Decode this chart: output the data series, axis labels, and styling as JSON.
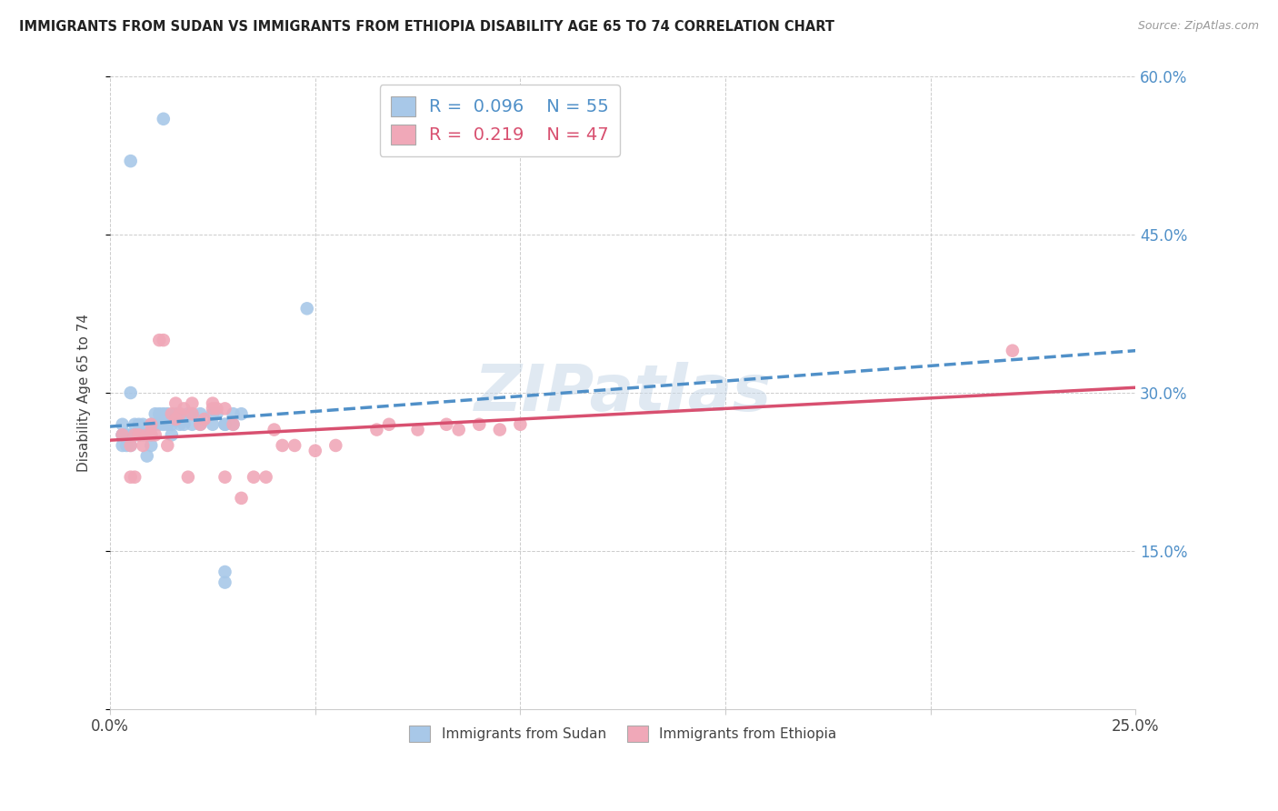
{
  "title": "IMMIGRANTS FROM SUDAN VS IMMIGRANTS FROM ETHIOPIA DISABILITY AGE 65 TO 74 CORRELATION CHART",
  "source": "Source: ZipAtlas.com",
  "ylabel": "Disability Age 65 to 74",
  "xmin": 0.0,
  "xmax": 0.25,
  "ymin": 0.0,
  "ymax": 0.6,
  "sudan_R": 0.096,
  "sudan_N": 55,
  "ethiopia_R": 0.219,
  "ethiopia_N": 47,
  "sudan_color": "#a8c8e8",
  "ethiopia_color": "#f0a8b8",
  "sudan_line_color": "#5090c8",
  "ethiopia_line_color": "#d85070",
  "sudan_scatter_x": [
    0.005,
    0.013,
    0.004,
    0.003,
    0.003,
    0.003,
    0.003,
    0.004,
    0.004,
    0.005,
    0.005,
    0.005,
    0.006,
    0.006,
    0.007,
    0.007,
    0.008,
    0.008,
    0.009,
    0.009,
    0.01,
    0.01,
    0.01,
    0.011,
    0.011,
    0.012,
    0.012,
    0.013,
    0.013,
    0.014,
    0.014,
    0.015,
    0.015,
    0.016,
    0.016,
    0.017,
    0.017,
    0.018,
    0.018,
    0.019,
    0.02,
    0.02,
    0.022,
    0.022,
    0.025,
    0.025,
    0.026,
    0.028,
    0.028,
    0.03,
    0.03,
    0.032,
    0.048,
    0.028,
    0.028
  ],
  "sudan_scatter_y": [
    0.52,
    0.56,
    0.26,
    0.26,
    0.25,
    0.26,
    0.27,
    0.25,
    0.26,
    0.3,
    0.26,
    0.25,
    0.27,
    0.26,
    0.27,
    0.26,
    0.26,
    0.27,
    0.24,
    0.26,
    0.26,
    0.27,
    0.25,
    0.28,
    0.27,
    0.27,
    0.28,
    0.27,
    0.28,
    0.27,
    0.28,
    0.26,
    0.27,
    0.275,
    0.28,
    0.275,
    0.27,
    0.27,
    0.275,
    0.28,
    0.27,
    0.28,
    0.28,
    0.27,
    0.27,
    0.28,
    0.28,
    0.27,
    0.27,
    0.28,
    0.27,
    0.28,
    0.38,
    0.12,
    0.13
  ],
  "ethiopia_scatter_x": [
    0.003,
    0.005,
    0.005,
    0.006,
    0.006,
    0.007,
    0.008,
    0.009,
    0.01,
    0.01,
    0.011,
    0.012,
    0.013,
    0.014,
    0.015,
    0.016,
    0.016,
    0.017,
    0.018,
    0.019,
    0.02,
    0.02,
    0.022,
    0.023,
    0.025,
    0.025,
    0.026,
    0.028,
    0.028,
    0.03,
    0.032,
    0.035,
    0.038,
    0.04,
    0.042,
    0.045,
    0.05,
    0.055,
    0.065,
    0.068,
    0.075,
    0.082,
    0.085,
    0.09,
    0.095,
    0.1,
    0.22
  ],
  "ethiopia_scatter_y": [
    0.26,
    0.25,
    0.22,
    0.22,
    0.26,
    0.26,
    0.25,
    0.26,
    0.26,
    0.27,
    0.26,
    0.35,
    0.35,
    0.25,
    0.28,
    0.29,
    0.275,
    0.28,
    0.285,
    0.22,
    0.29,
    0.28,
    0.27,
    0.275,
    0.29,
    0.285,
    0.285,
    0.22,
    0.285,
    0.27,
    0.2,
    0.22,
    0.22,
    0.265,
    0.25,
    0.25,
    0.245,
    0.25,
    0.265,
    0.27,
    0.265,
    0.27,
    0.265,
    0.27,
    0.265,
    0.27,
    0.34
  ],
  "watermark": "ZIPatlas"
}
